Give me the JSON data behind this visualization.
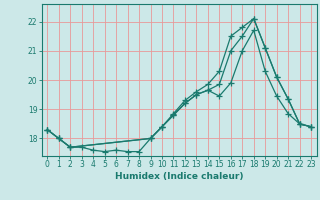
{
  "xlabel": "Humidex (Indice chaleur)",
  "ylabel": "",
  "bg_color": "#cce8e8",
  "grid_color": "#e89898",
  "line_color": "#1a7a6e",
  "xlim": [
    -0.5,
    23.5
  ],
  "ylim": [
    17.4,
    22.6
  ],
  "yticks": [
    18,
    19,
    20,
    21,
    22
  ],
  "xticks": [
    0,
    1,
    2,
    3,
    4,
    5,
    6,
    7,
    8,
    9,
    10,
    11,
    12,
    13,
    14,
    15,
    16,
    17,
    18,
    19,
    20,
    21,
    22,
    23
  ],
  "line1_x": [
    0,
    1,
    2,
    3,
    4,
    5,
    6,
    7,
    8,
    9,
    10,
    11,
    12,
    13,
    14,
    15,
    16,
    17,
    18,
    19,
    20,
    21,
    22,
    23
  ],
  "line1_y": [
    18.3,
    18.0,
    17.7,
    17.7,
    17.6,
    17.55,
    17.6,
    17.55,
    17.55,
    18.0,
    18.4,
    18.8,
    19.2,
    19.5,
    19.65,
    19.45,
    19.9,
    21.0,
    21.7,
    20.3,
    19.45,
    18.85,
    18.5,
    18.4
  ],
  "line2_x": [
    0,
    1,
    2,
    9,
    10,
    11,
    12,
    13,
    14,
    15,
    16,
    17,
    18,
    19,
    20,
    21,
    22,
    23
  ],
  "line2_y": [
    18.3,
    18.0,
    17.7,
    18.0,
    18.4,
    18.8,
    19.2,
    19.5,
    19.65,
    19.85,
    21.0,
    21.5,
    22.1,
    21.1,
    20.1,
    19.35,
    18.5,
    18.4
  ],
  "line3_x": [
    0,
    1,
    2,
    9,
    10,
    11,
    12,
    13,
    14,
    15,
    16,
    17,
    18,
    19,
    20,
    21,
    22,
    23
  ],
  "line3_y": [
    18.3,
    18.0,
    17.7,
    18.0,
    18.4,
    18.85,
    19.3,
    19.6,
    19.85,
    20.3,
    21.5,
    21.8,
    22.1,
    21.1,
    20.1,
    19.35,
    18.5,
    18.4
  ]
}
